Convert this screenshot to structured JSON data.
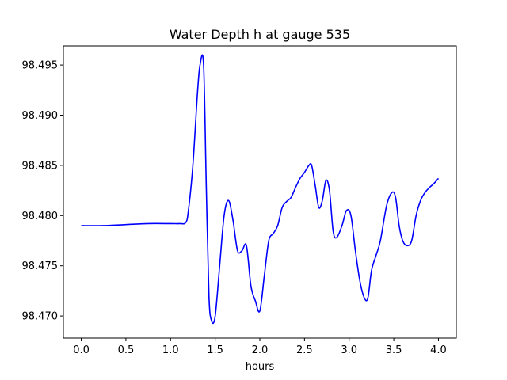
{
  "chart_data": {
    "type": "line",
    "title": "Water Depth h at gauge 535",
    "xlabel": "hours",
    "ylabel": "",
    "xlim": [
      -0.2,
      4.2
    ],
    "ylim": [
      98.4678,
      98.4969
    ],
    "xticks": [
      0.0,
      0.5,
      1.0,
      1.5,
      2.0,
      2.5,
      3.0,
      3.5,
      4.0
    ],
    "xtick_labels": [
      "0.0",
      "0.5",
      "1.0",
      "1.5",
      "2.0",
      "2.5",
      "3.0",
      "3.5",
      "4.0"
    ],
    "yticks": [
      98.47,
      98.475,
      98.48,
      98.485,
      98.49,
      98.495
    ],
    "ytick_labels": [
      "98.470",
      "98.475",
      "98.480",
      "98.485",
      "98.490",
      "98.495"
    ],
    "grid": false,
    "legend": "none",
    "series": [
      {
        "color": "#0000ff",
        "x": [
          0.0,
          0.25,
          0.5,
          0.75,
          1.0,
          1.1,
          1.17,
          1.2,
          1.25,
          1.3,
          1.33,
          1.37,
          1.4,
          1.43,
          1.46,
          1.5,
          1.55,
          1.6,
          1.65,
          1.7,
          1.75,
          1.8,
          1.85,
          1.9,
          1.95,
          2.0,
          2.05,
          2.1,
          2.15,
          2.2,
          2.25,
          2.3,
          2.35,
          2.4,
          2.45,
          2.5,
          2.55,
          2.58,
          2.62,
          2.66,
          2.7,
          2.74,
          2.78,
          2.82,
          2.86,
          2.92,
          2.97,
          3.02,
          3.07,
          3.12,
          3.17,
          3.21,
          3.25,
          3.3,
          3.35,
          3.42,
          3.48,
          3.52,
          3.56,
          3.6,
          3.65,
          3.7,
          3.75,
          3.8,
          3.85,
          3.9,
          3.95,
          4.0
        ],
        "y": [
          98.479,
          98.479,
          98.4791,
          98.4792,
          98.4792,
          98.4792,
          98.4793,
          98.4805,
          98.485,
          98.492,
          98.495,
          98.495,
          98.483,
          98.472,
          98.4695,
          98.47,
          98.475,
          98.48,
          98.4815,
          98.4795,
          98.4765,
          98.4765,
          98.477,
          98.473,
          98.4715,
          98.4705,
          98.474,
          98.4775,
          98.4782,
          98.479,
          98.4808,
          98.4814,
          98.4818,
          98.4828,
          98.4837,
          98.4843,
          98.485,
          98.485,
          98.483,
          98.4808,
          98.4815,
          98.4835,
          98.4825,
          98.4785,
          98.4778,
          98.479,
          98.4805,
          98.48,
          98.4765,
          98.4735,
          98.4718,
          98.4718,
          98.4745,
          98.476,
          98.4775,
          98.481,
          98.4823,
          98.4818,
          98.479,
          98.4775,
          98.477,
          98.4775,
          98.48,
          98.4815,
          98.4823,
          98.4828,
          98.4832,
          98.4837
        ]
      }
    ]
  }
}
